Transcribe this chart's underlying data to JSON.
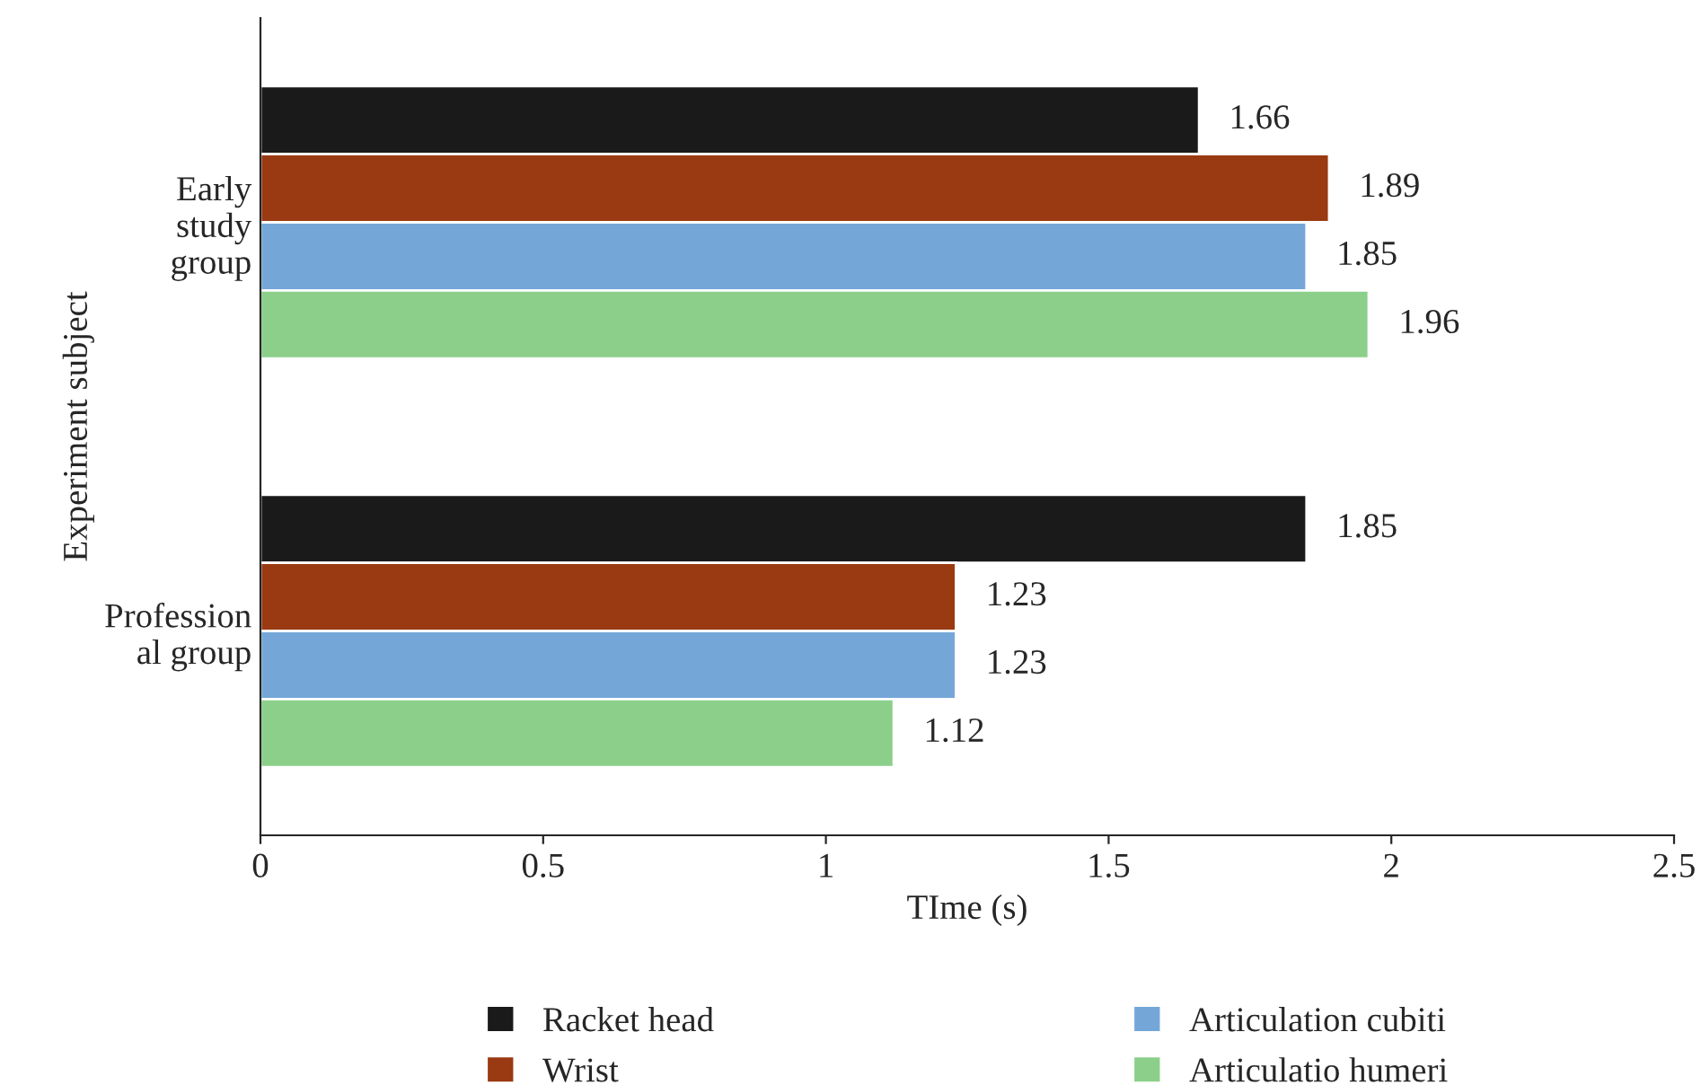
{
  "chart_data": {
    "type": "bar",
    "orientation": "horizontal",
    "categories": [
      "Early\nstudy\ngroup",
      "Profession\nal group"
    ],
    "series": [
      {
        "name": "Racket head",
        "color": "#1a1a1a",
        "values": [
          1.66,
          1.85
        ]
      },
      {
        "name": "Wrist",
        "color": "#9a3a12",
        "values": [
          1.89,
          1.23
        ]
      },
      {
        "name": "Articulation cubiti",
        "color": "#74a7d8",
        "values": [
          1.85,
          1.23
        ]
      },
      {
        "name": "Articulatio humeri",
        "color": "#8ccf8a",
        "values": [
          1.96,
          1.12
        ]
      }
    ],
    "xlabel": "TIme (s)",
    "ylabel": "Experiment subject",
    "xlim": [
      0,
      2.5
    ],
    "xticks": [
      0,
      0.5,
      1,
      1.5,
      2,
      2.5
    ],
    "data_labels": true,
    "grid": false,
    "legend": "bottom"
  }
}
